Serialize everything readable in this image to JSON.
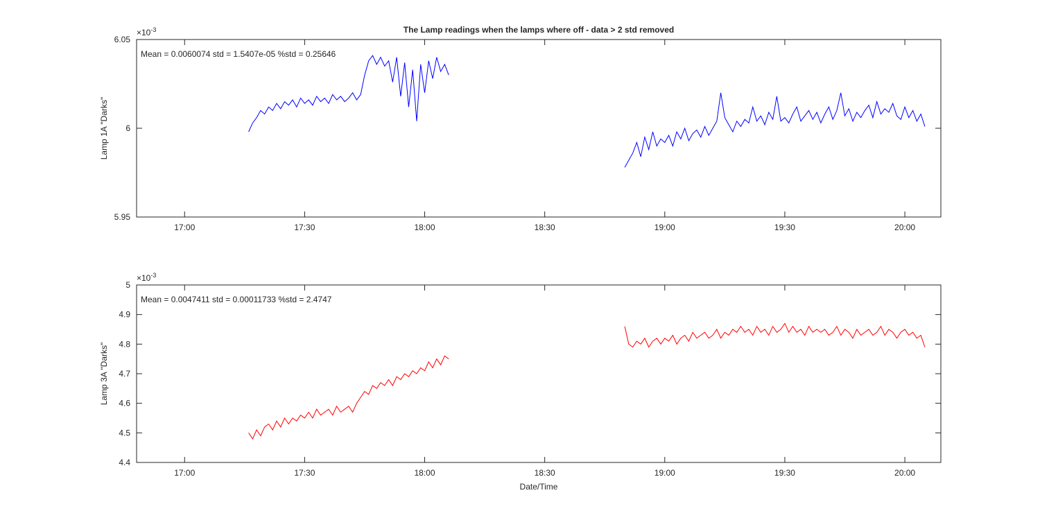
{
  "chart_data": [
    {
      "type": "line",
      "title": "The Lamp readings when the lamps where off - data > 2 std removed",
      "ylabel": "Lamp 1A \"Darks\"",
      "y_multiplier": "×10",
      "y_multiplier_exponent": "-3",
      "annotation": "Mean = 0.0060074  std = 1.5407e-05  %std = 0.25646",
      "grid": false,
      "xlim": [
        "16:48",
        "20:09"
      ],
      "xticks": [
        "17:00",
        "17:30",
        "18:00",
        "18:30",
        "19:00",
        "19:30",
        "20:00"
      ],
      "ylim": [
        5.95,
        6.05
      ],
      "yticks": [
        5.95,
        6,
        6.05
      ],
      "x": [
        "17:16",
        "17:17",
        "17:18",
        "17:19",
        "17:20",
        "17:21",
        "17:22",
        "17:23",
        "17:24",
        "17:25",
        "17:26",
        "17:27",
        "17:28",
        "17:29",
        "17:30",
        "17:31",
        "17:32",
        "17:33",
        "17:34",
        "17:35",
        "17:36",
        "17:37",
        "17:38",
        "17:39",
        "17:40",
        "17:41",
        "17:42",
        "17:43",
        "17:44",
        "17:45",
        "17:46",
        "17:47",
        "17:48",
        "17:49",
        "17:50",
        "17:51",
        "17:52",
        "17:53",
        "17:54",
        "17:55",
        "17:56",
        "17:57",
        "17:58",
        "17:59",
        "18:00",
        "18:01",
        "18:02",
        "18:03",
        "18:04",
        "18:05",
        "18:06",
        "18:28",
        "18:50",
        "18:51",
        "18:52",
        "18:53",
        "18:54",
        "18:55",
        "18:56",
        "18:57",
        "18:58",
        "18:59",
        "19:00",
        "19:01",
        "19:02",
        "19:03",
        "19:04",
        "19:05",
        "19:06",
        "19:07",
        "19:08",
        "19:09",
        "19:10",
        "19:11",
        "19:12",
        "19:13",
        "19:14",
        "19:15",
        "19:16",
        "19:17",
        "19:18",
        "19:19",
        "19:20",
        "19:21",
        "19:22",
        "19:23",
        "19:24",
        "19:25",
        "19:26",
        "19:27",
        "19:28",
        "19:29",
        "19:30",
        "19:31",
        "19:32",
        "19:33",
        "19:34",
        "19:35",
        "19:36",
        "19:37",
        "19:38",
        "19:39",
        "19:40",
        "19:41",
        "19:42",
        "19:43",
        "19:44",
        "19:45",
        "19:46",
        "19:47",
        "19:48",
        "19:49",
        "19:50",
        "19:51",
        "19:52",
        "19:53",
        "19:54",
        "19:55",
        "19:56",
        "19:57",
        "19:58",
        "19:59",
        "20:00",
        "20:01",
        "20:02",
        "20:03",
        "20:04",
        "20:05"
      ],
      "series": [
        {
          "color": "#0000ff",
          "values": [
            5.998,
            6.003,
            6.006,
            6.01,
            6.008,
            6.012,
            6.01,
            6.014,
            6.011,
            6.015,
            6.013,
            6.016,
            6.012,
            6.017,
            6.014,
            6.016,
            6.013,
            6.018,
            6.015,
            6.017,
            6.014,
            6.019,
            6.016,
            6.018,
            6.015,
            6.017,
            6.02,
            6.016,
            6.019,
            6.03,
            6.038,
            6.041,
            6.036,
            6.04,
            6.035,
            6.038,
            6.026,
            6.04,
            6.018,
            6.037,
            6.012,
            6.033,
            6.004,
            6.036,
            6.02,
            6.038,
            6.028,
            6.04,
            6.032,
            6.036,
            6.03,
            null,
            5.978,
            5.982,
            5.986,
            5.992,
            5.984,
            5.995,
            5.988,
            5.998,
            5.99,
            5.994,
            5.992,
            5.996,
            5.99,
            5.998,
            5.994,
            6.0,
            5.993,
            5.997,
            5.999,
            5.995,
            6.001,
            5.996,
            6.0,
            6.004,
            6.02,
            6.006,
            6.002,
            5.998,
            6.004,
            6.001,
            6.005,
            6.003,
            6.012,
            6.004,
            6.007,
            6.002,
            6.009,
            6.005,
            6.018,
            6.004,
            6.006,
            6.003,
            6.008,
            6.012,
            6.004,
            6.007,
            6.01,
            6.005,
            6.009,
            6.003,
            6.008,
            6.012,
            6.005,
            6.01,
            6.02,
            6.007,
            6.011,
            6.004,
            6.009,
            6.006,
            6.01,
            6.013,
            6.006,
            6.015,
            6.008,
            6.011,
            6.009,
            6.014,
            6.007,
            6.005,
            6.012,
            6.006,
            6.01,
            6.004,
            6.008,
            6.001
          ]
        }
      ]
    },
    {
      "type": "line",
      "xlabel": "Date/Time",
      "ylabel": "Lamp 3A \"Darks\"",
      "y_multiplier": "×10",
      "y_multiplier_exponent": "-3",
      "annotation": "Mean = 0.0047411  std = 0.00011733  %std = 2.4747",
      "grid": false,
      "xlim": [
        "16:48",
        "20:09"
      ],
      "xticks": [
        "17:00",
        "17:30",
        "18:00",
        "18:30",
        "19:00",
        "19:30",
        "20:00"
      ],
      "ylim": [
        4.4,
        5
      ],
      "yticks": [
        4.4,
        4.5,
        4.6,
        4.7,
        4.8,
        4.9,
        5
      ],
      "x": [
        "17:16",
        "17:17",
        "17:18",
        "17:19",
        "17:20",
        "17:21",
        "17:22",
        "17:23",
        "17:24",
        "17:25",
        "17:26",
        "17:27",
        "17:28",
        "17:29",
        "17:30",
        "17:31",
        "17:32",
        "17:33",
        "17:34",
        "17:35",
        "17:36",
        "17:37",
        "17:38",
        "17:39",
        "17:40",
        "17:41",
        "17:42",
        "17:43",
        "17:44",
        "17:45",
        "17:46",
        "17:47",
        "17:48",
        "17:49",
        "17:50",
        "17:51",
        "17:52",
        "17:53",
        "17:54",
        "17:55",
        "17:56",
        "17:57",
        "17:58",
        "17:59",
        "18:00",
        "18:01",
        "18:02",
        "18:03",
        "18:04",
        "18:05",
        "18:06",
        "18:28",
        "18:50",
        "18:51",
        "18:52",
        "18:53",
        "18:54",
        "18:55",
        "18:56",
        "18:57",
        "18:58",
        "18:59",
        "19:00",
        "19:01",
        "19:02",
        "19:03",
        "19:04",
        "19:05",
        "19:06",
        "19:07",
        "19:08",
        "19:09",
        "19:10",
        "19:11",
        "19:12",
        "19:13",
        "19:14",
        "19:15",
        "19:16",
        "19:17",
        "19:18",
        "19:19",
        "19:20",
        "19:21",
        "19:22",
        "19:23",
        "19:24",
        "19:25",
        "19:26",
        "19:27",
        "19:28",
        "19:29",
        "19:30",
        "19:31",
        "19:32",
        "19:33",
        "19:34",
        "19:35",
        "19:36",
        "19:37",
        "19:38",
        "19:39",
        "19:40",
        "19:41",
        "19:42",
        "19:43",
        "19:44",
        "19:45",
        "19:46",
        "19:47",
        "19:48",
        "19:49",
        "19:50",
        "19:51",
        "19:52",
        "19:53",
        "19:54",
        "19:55",
        "19:56",
        "19:57",
        "19:58",
        "19:59",
        "20:00",
        "20:01",
        "20:02",
        "20:03",
        "20:04",
        "20:05"
      ],
      "series": [
        {
          "color": "#ff0000",
          "values": [
            4.5,
            4.48,
            4.51,
            4.49,
            4.52,
            4.53,
            4.51,
            4.54,
            4.52,
            4.55,
            4.53,
            4.55,
            4.54,
            4.56,
            4.55,
            4.57,
            4.55,
            4.58,
            4.56,
            4.57,
            4.58,
            4.56,
            4.59,
            4.57,
            4.58,
            4.59,
            4.57,
            4.6,
            4.62,
            4.64,
            4.63,
            4.66,
            4.65,
            4.67,
            4.66,
            4.68,
            4.66,
            4.69,
            4.68,
            4.7,
            4.69,
            4.71,
            4.7,
            4.72,
            4.71,
            4.74,
            4.72,
            4.75,
            4.73,
            4.76,
            4.75,
            null,
            4.86,
            4.8,
            4.79,
            4.81,
            4.8,
            4.82,
            4.79,
            4.81,
            4.82,
            4.8,
            4.82,
            4.81,
            4.83,
            4.8,
            4.82,
            4.83,
            4.81,
            4.84,
            4.82,
            4.83,
            4.84,
            4.82,
            4.83,
            4.85,
            4.82,
            4.84,
            4.83,
            4.85,
            4.84,
            4.86,
            4.84,
            4.85,
            4.83,
            4.86,
            4.84,
            4.85,
            4.83,
            4.86,
            4.84,
            4.85,
            4.87,
            4.84,
            4.86,
            4.84,
            4.85,
            4.83,
            4.86,
            4.84,
            4.85,
            4.84,
            4.85,
            4.83,
            4.84,
            4.86,
            4.83,
            4.85,
            4.84,
            4.82,
            4.85,
            4.83,
            4.84,
            4.85,
            4.83,
            4.84,
            4.86,
            4.83,
            4.85,
            4.84,
            4.82,
            4.84,
            4.85,
            4.83,
            4.84,
            4.82,
            4.83,
            4.79
          ]
        }
      ]
    }
  ]
}
